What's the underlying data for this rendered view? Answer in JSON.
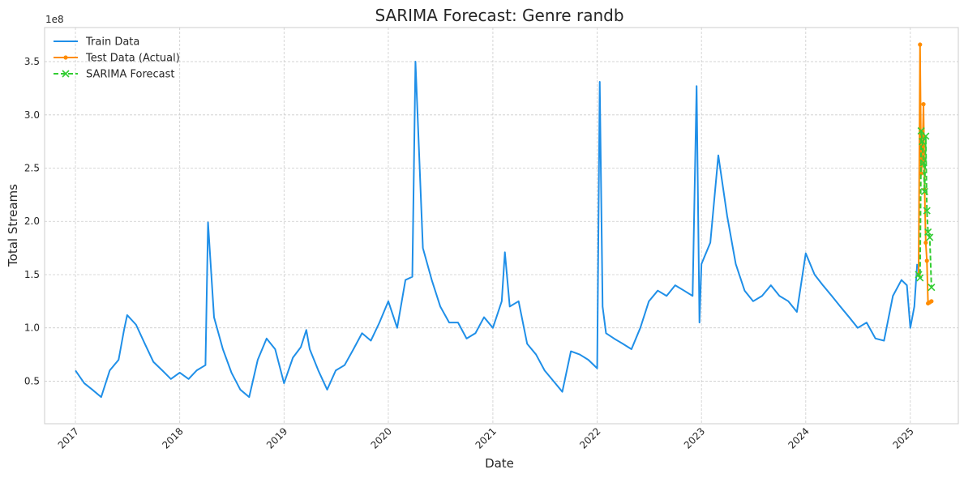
{
  "chart_data": {
    "type": "line",
    "title": "SARIMA Forecast: Genre randb",
    "xlabel": "Date",
    "ylabel": "Total Streams",
    "y_offset_label": "1e8",
    "y_scale": 100000000,
    "xlim": [
      "2016-09-15",
      "2025-06-18"
    ],
    "ylim": [
      0.1,
      3.82
    ],
    "x_ticks": [
      "2017",
      "2018",
      "2019",
      "2020",
      "2021",
      "2022",
      "2023",
      "2024",
      "2025"
    ],
    "y_ticks": [
      "0.5",
      "1.0",
      "1.5",
      "2.0",
      "2.5",
      "3.0",
      "3.5"
    ],
    "grid": true,
    "legend_position": "top-left",
    "series": [
      {
        "name": "Train Data",
        "color": "#1f8fe8",
        "style": "solid",
        "marker": "none",
        "x": [
          "2017-01-01",
          "2017-02-01",
          "2017-03-01",
          "2017-04-01",
          "2017-05-01",
          "2017-06-01",
          "2017-06-20",
          "2017-07-01",
          "2017-08-01",
          "2017-09-01",
          "2017-10-01",
          "2017-11-01",
          "2017-12-01",
          "2018-01-01",
          "2018-02-01",
          "2018-03-01",
          "2018-04-01",
          "2018-04-10",
          "2018-05-01",
          "2018-06-01",
          "2018-07-01",
          "2018-08-01",
          "2018-09-01",
          "2018-10-01",
          "2018-11-01",
          "2018-12-01",
          "2019-01-01",
          "2019-02-01",
          "2019-03-01",
          "2019-03-20",
          "2019-04-01",
          "2019-05-01",
          "2019-06-01",
          "2019-07-01",
          "2019-08-01",
          "2019-09-01",
          "2019-10-01",
          "2019-11-01",
          "2019-12-01",
          "2020-01-01",
          "2020-02-01",
          "2020-03-01",
          "2020-03-25",
          "2020-04-05",
          "2020-05-01",
          "2020-06-01",
          "2020-07-01",
          "2020-08-01",
          "2020-09-01",
          "2020-10-01",
          "2020-11-01",
          "2020-12-01",
          "2021-01-01",
          "2021-02-01",
          "2021-02-12",
          "2021-03-01",
          "2021-04-01",
          "2021-05-01",
          "2021-06-01",
          "2021-07-01",
          "2021-08-01",
          "2021-09-01",
          "2021-10-01",
          "2021-11-01",
          "2021-12-01",
          "2022-01-01",
          "2022-01-10",
          "2022-01-20",
          "2022-02-01",
          "2022-03-01",
          "2022-04-01",
          "2022-05-01",
          "2022-06-01",
          "2022-07-01",
          "2022-08-01",
          "2022-09-01",
          "2022-10-01",
          "2022-11-01",
          "2022-12-01",
          "2022-12-15",
          "2022-12-25",
          "2023-01-01",
          "2023-02-01",
          "2023-03-01",
          "2023-04-01",
          "2023-05-01",
          "2023-06-01",
          "2023-07-01",
          "2023-08-01",
          "2023-09-01",
          "2023-10-01",
          "2023-11-01",
          "2023-12-01",
          "2024-01-01",
          "2024-02-01",
          "2024-03-01",
          "2024-04-01",
          "2024-05-01",
          "2024-06-01",
          "2024-07-01",
          "2024-08-01",
          "2024-09-01",
          "2024-10-01",
          "2024-11-01",
          "2024-12-01",
          "2024-12-20",
          "2025-01-01",
          "2025-01-15",
          "2025-01-25"
        ],
        "y": [
          0.6,
          0.48,
          0.42,
          0.35,
          0.6,
          0.7,
          0.98,
          1.12,
          1.03,
          0.85,
          0.68,
          0.6,
          0.52,
          0.58,
          0.52,
          0.6,
          0.65,
          1.99,
          1.1,
          0.8,
          0.58,
          0.42,
          0.35,
          0.7,
          0.9,
          0.8,
          0.48,
          0.72,
          0.82,
          0.98,
          0.8,
          0.6,
          0.42,
          0.6,
          0.65,
          0.8,
          0.95,
          0.88,
          1.05,
          1.25,
          1.0,
          1.45,
          1.48,
          3.5,
          1.75,
          1.45,
          1.2,
          1.05,
          1.05,
          0.9,
          0.95,
          1.1,
          1.0,
          1.25,
          1.71,
          1.2,
          1.25,
          0.85,
          0.75,
          0.6,
          0.5,
          0.4,
          0.78,
          0.75,
          0.7,
          0.62,
          3.31,
          1.2,
          0.95,
          0.9,
          0.85,
          0.8,
          1.0,
          1.25,
          1.35,
          1.3,
          1.4,
          1.35,
          1.3,
          3.27,
          1.05,
          1.6,
          1.8,
          2.62,
          2.05,
          1.6,
          1.35,
          1.25,
          1.3,
          1.4,
          1.3,
          1.25,
          1.15,
          1.7,
          1.5,
          1.4,
          1.3,
          1.2,
          1.1,
          1.0,
          1.05,
          0.9,
          0.88,
          1.3,
          1.45,
          1.4,
          1.0,
          1.2,
          1.6
        ]
      },
      {
        "name": "Test Data (Actual)",
        "color": "#ff8c00",
        "style": "solid",
        "marker": "dot",
        "x": [
          "2025-01-30",
          "2025-02-04",
          "2025-02-08",
          "2025-02-12",
          "2025-02-16",
          "2025-02-20",
          "2025-02-24",
          "2025-02-28",
          "2025-03-04",
          "2025-03-10",
          "2025-03-16"
        ],
        "y": [
          1.5,
          3.66,
          2.45,
          2.58,
          3.1,
          2.3,
          1.8,
          1.63,
          1.23,
          1.24,
          1.25
        ]
      },
      {
        "name": "SARIMA Forecast",
        "color": "#32cd32",
        "style": "dashed",
        "marker": "x",
        "x": [
          "2025-01-30",
          "2025-02-04",
          "2025-02-08",
          "2025-02-12",
          "2025-02-16",
          "2025-02-20",
          "2025-02-24",
          "2025-02-28",
          "2025-03-04",
          "2025-03-10",
          "2025-03-16"
        ],
        "y": [
          1.5,
          1.47,
          2.85,
          2.75,
          2.55,
          2.28,
          2.8,
          2.1,
          1.9,
          1.85,
          1.38
        ]
      }
    ]
  }
}
